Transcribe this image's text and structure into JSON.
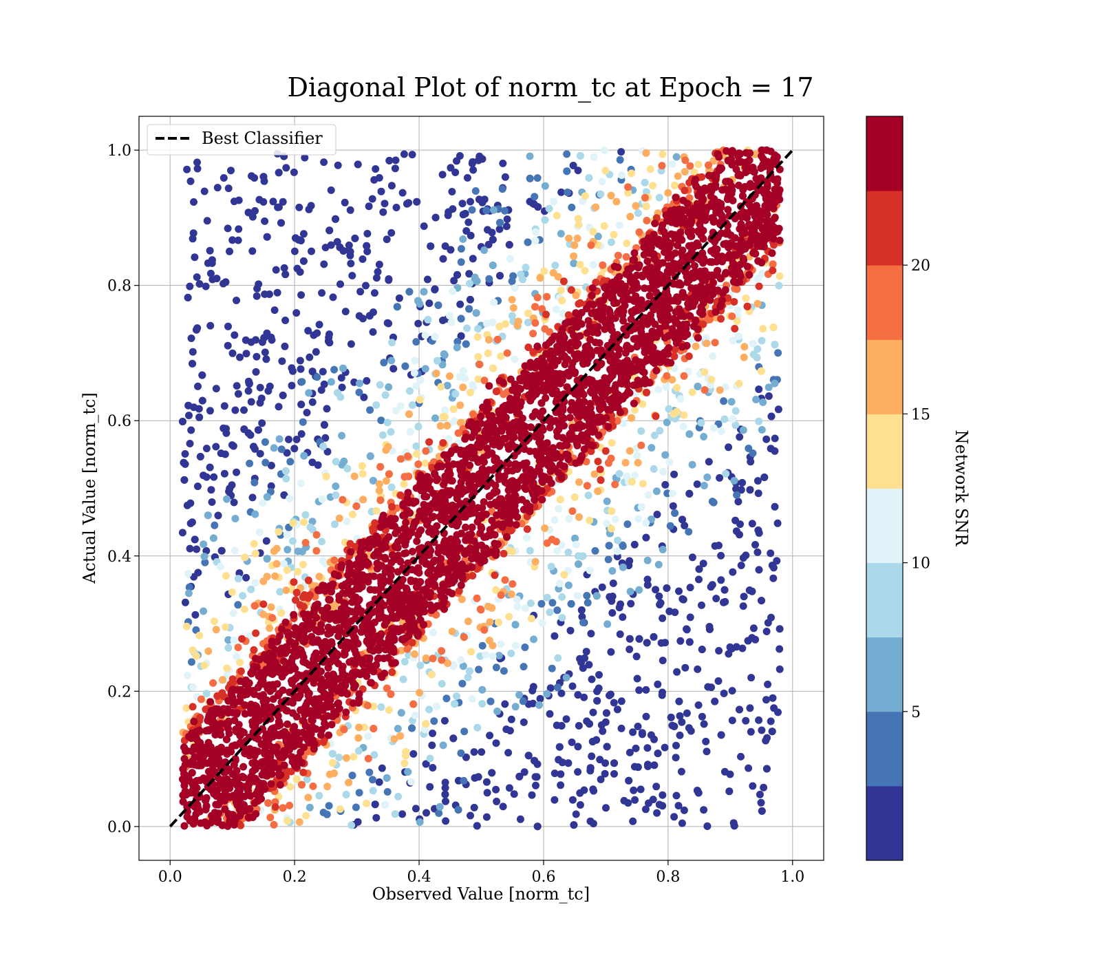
{
  "chart_data": {
    "type": "scatter",
    "title": "Diagonal Plot of norm_tc at Epoch = 17",
    "xlabel": "Observed Value [norm_tc]",
    "ylabel": "Actual Value [norm_tc]",
    "xlim": [
      -0.05,
      1.05
    ],
    "ylim": [
      -0.05,
      1.05
    ],
    "xticks": [
      "0.0",
      "0.2",
      "0.4",
      "0.6",
      "0.8",
      "1.0"
    ],
    "yticks": [
      "0.0",
      "0.2",
      "0.4",
      "0.6",
      "0.8",
      "1.0"
    ],
    "grid": true,
    "legend": {
      "placement": "upper-left",
      "entries": [
        {
          "label": "Best Classifier",
          "style": "black dashed line"
        }
      ]
    },
    "reference_line": {
      "label": "Best Classifier",
      "x": [
        0.0,
        1.0
      ],
      "y": [
        0.0,
        1.0
      ],
      "color": "#000000",
      "dash": true
    },
    "colorbar": {
      "label": "Network SNR",
      "ticks": [
        "5",
        "10",
        "15",
        "20"
      ],
      "tick_values": [
        5,
        10,
        15,
        20
      ],
      "range": [
        0,
        25
      ],
      "levels": [
        0,
        2.5,
        5,
        7.5,
        10,
        12.5,
        15,
        17.5,
        20,
        22.5,
        25
      ],
      "colors": [
        "#313695",
        "#4575b4",
        "#74add1",
        "#abd9e9",
        "#e0f3f8",
        "#fee090",
        "#fdae61",
        "#f46d43",
        "#d73027",
        "#a50026"
      ]
    },
    "series": [
      {
        "description": "dense high-SNR points clustered along the diagonal (|x - y| < ~0.12), colored dark red",
        "band_half_width": 0.12,
        "snr_range": [
          22.5,
          25
        ]
      },
      {
        "description": "lower-SNR points scattered away from the diagonal in both directions, observed range roughly x 0.02-0.98",
        "snr_range": [
          0,
          22.5
        ]
      }
    ]
  }
}
